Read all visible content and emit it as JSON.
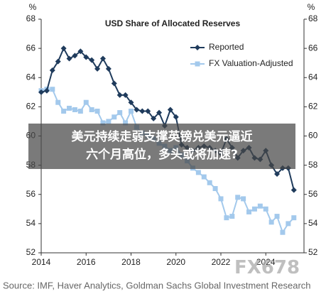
{
  "chart_data": {
    "type": "line",
    "title": "USD Share of Allocated Reserves",
    "y_unit": "%",
    "y2_unit": "%",
    "x": [
      2014,
      2014.25,
      2014.5,
      2014.75,
      2015,
      2015.25,
      2015.5,
      2015.75,
      2016,
      2016.25,
      2016.5,
      2016.75,
      2017,
      2017.25,
      2017.5,
      2017.75,
      2018,
      2018.25,
      2018.5,
      2018.75,
      2019,
      2019.25,
      2019.5,
      2019.75,
      2020,
      2020.25,
      2020.5,
      2020.75,
      2021,
      2021.25,
      2021.5,
      2021.75,
      2022,
      2022.25,
      2022.5,
      2022.75,
      2023,
      2023.25,
      2023.5,
      2023.75,
      2024,
      2024.25,
      2024.5,
      2024.75,
      2025,
      2025.25
    ],
    "series": [
      {
        "name": "Reported",
        "color": "#1f3b5c",
        "marker": "diamond",
        "values": [
          63.0,
          63.1,
          64.5,
          65.1,
          66.0,
          65.3,
          65.5,
          65.8,
          65.4,
          65.2,
          64.6,
          65.3,
          64.6,
          63.6,
          62.8,
          62.8,
          62.3,
          61.8,
          61.7,
          61.7,
          61.2,
          61.6,
          60.7,
          61.8,
          61.3,
          59.4,
          59.2,
          59.0,
          59.2,
          59.3,
          59.2,
          59.0,
          58.8,
          59.8,
          59.2,
          58.5,
          59.0,
          59.2,
          58.5,
          58.4,
          59.0,
          58.0,
          57.4,
          57.8,
          57.8,
          56.3
        ]
      },
      {
        "name": "FX Valuation-Adjusted",
        "color": "#a3c9ec",
        "marker": "square",
        "values": [
          63.1,
          63.2,
          63.2,
          62.3,
          61.7,
          61.9,
          61.8,
          61.7,
          62.3,
          61.8,
          61.7,
          60.9,
          61.0,
          61.3,
          61.6,
          60.9,
          61.7,
          60.6,
          60.2,
          60.0,
          59.8,
          59.5,
          59.3,
          59.0,
          59.2,
          58.7,
          58.3,
          57.8,
          57.5,
          57.2,
          56.8,
          56.4,
          55.7,
          54.4,
          54.5,
          55.8,
          55.7,
          54.8,
          55.0,
          55.2,
          55.0,
          54.1,
          54.5,
          53.4,
          54.0,
          54.4
        ]
      }
    ],
    "xlim": [
      2014,
      2025.7
    ],
    "xticks": [
      2014,
      2016,
      2018,
      2020,
      2022,
      2024
    ],
    "ylim": [
      52,
      68
    ],
    "yticks": [
      52,
      54,
      56,
      58,
      60,
      62,
      64,
      66,
      68
    ],
    "y2lim": [
      52,
      68
    ],
    "y2ticks": [
      52,
      54,
      56,
      58,
      60,
      62,
      64,
      66,
      68
    ],
    "legend": "upper right",
    "grid": false,
    "source": "Source: IMF, Haver Analytics, Goldman Sachs Global Investment Research"
  },
  "overlay": {
    "headline_line1": "美元持续走弱支撑英镑兑美元逼近",
    "headline_line2": "六个月高位，多头或将加速?",
    "watermark": "FX678"
  }
}
